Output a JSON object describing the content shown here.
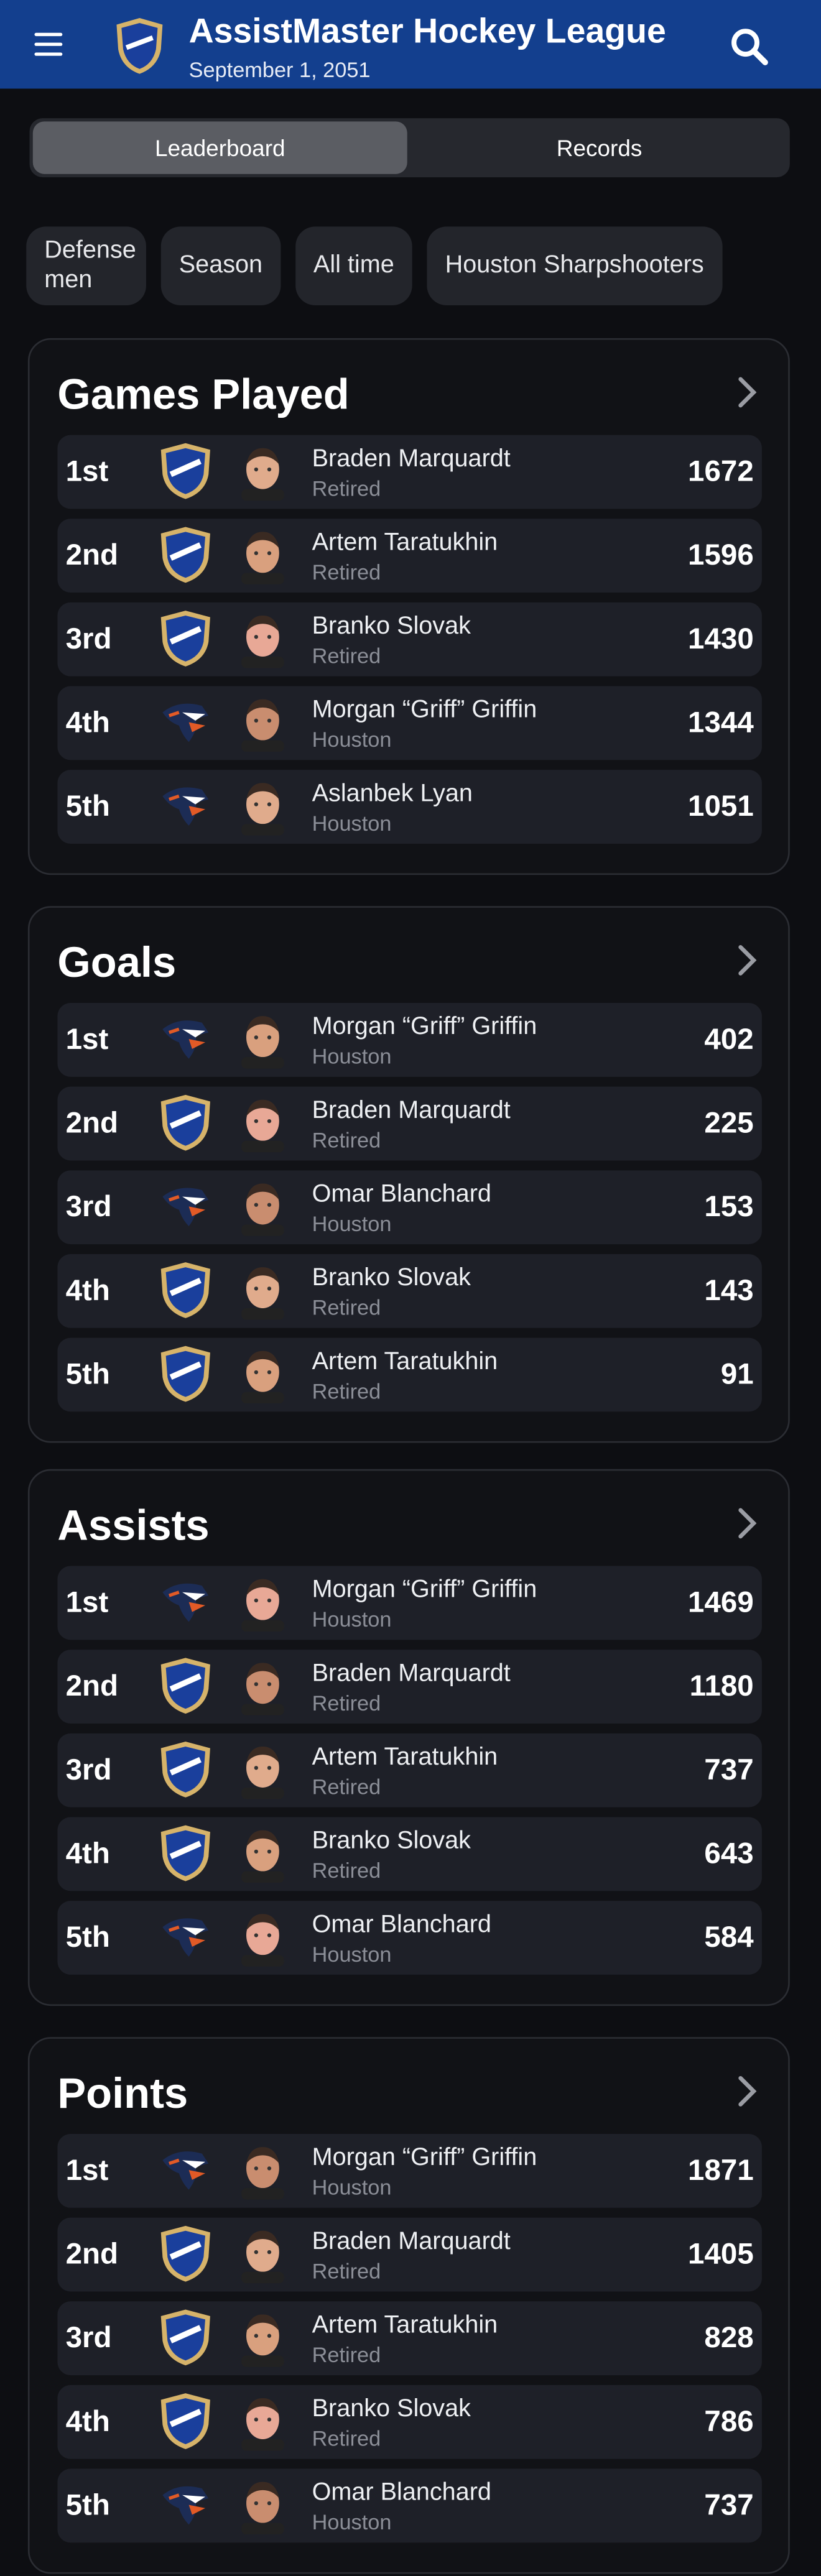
{
  "header": {
    "title": "AssistMaster Hockey League",
    "date": "September 1, 2051"
  },
  "tabs": [
    "Leaderboard",
    "Records"
  ],
  "filters": [
    "Defense men",
    "Season",
    "All time",
    "Houston Sharpshooters"
  ],
  "sections": [
    {
      "title": "Games Played",
      "rows": [
        {
          "rank": "1st",
          "name": "Braden Marquardt",
          "team": "Retired",
          "value": 1672
        },
        {
          "rank": "2nd",
          "name": "Artem Taratukhin",
          "team": "Retired",
          "value": 1596
        },
        {
          "rank": "3rd",
          "name": "Branko Slovak",
          "team": "Retired",
          "value": 1430
        },
        {
          "rank": "4th",
          "name": "Morgan “Griff” Griffin",
          "team": "Houston",
          "value": 1344
        },
        {
          "rank": "5th",
          "name": "Aslanbek Lyan",
          "team": "Houston",
          "value": 1051
        }
      ]
    },
    {
      "title": "Goals",
      "rows": [
        {
          "rank": "1st",
          "name": "Morgan “Griff” Griffin",
          "team": "Houston",
          "value": 402
        },
        {
          "rank": "2nd",
          "name": "Braden Marquardt",
          "team": "Retired",
          "value": 225
        },
        {
          "rank": "3rd",
          "name": "Omar Blanchard",
          "team": "Houston",
          "value": 153
        },
        {
          "rank": "4th",
          "name": "Branko Slovak",
          "team": "Retired",
          "value": 143
        },
        {
          "rank": "5th",
          "name": "Artem Taratukhin",
          "team": "Retired",
          "value": 91
        }
      ]
    },
    {
      "title": "Assists",
      "rows": [
        {
          "rank": "1st",
          "name": "Morgan “Griff” Griffin",
          "team": "Houston",
          "value": 1469
        },
        {
          "rank": "2nd",
          "name": "Braden Marquardt",
          "team": "Retired",
          "value": 1180
        },
        {
          "rank": "3rd",
          "name": "Artem Taratukhin",
          "team": "Retired",
          "value": 737
        },
        {
          "rank": "4th",
          "name": "Branko Slovak",
          "team": "Retired",
          "value": 643
        },
        {
          "rank": "5th",
          "name": "Omar Blanchard",
          "team": "Houston",
          "value": 584
        }
      ]
    },
    {
      "title": "Points",
      "rows": [
        {
          "rank": "1st",
          "name": "Morgan “Griff” Griffin",
          "team": "Houston",
          "value": 1871
        },
        {
          "rank": "2nd",
          "name": "Braden Marquardt",
          "team": "Retired",
          "value": 1405
        },
        {
          "rank": "3rd",
          "name": "Artem Taratukhin",
          "team": "Retired",
          "value": 828
        },
        {
          "rank": "4th",
          "name": "Branko Slovak",
          "team": "Retired",
          "value": 786
        },
        {
          "rank": "5th",
          "name": "Omar Blanchard",
          "team": "Houston",
          "value": 737
        }
      ]
    }
  ]
}
